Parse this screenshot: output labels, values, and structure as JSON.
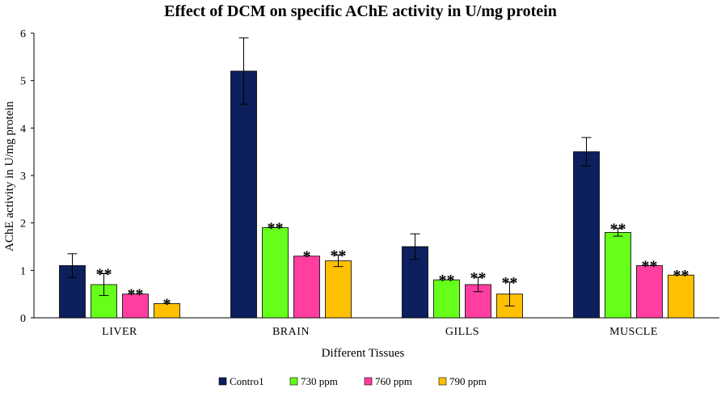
{
  "chart_data": {
    "type": "bar",
    "title": "Effect of DCM on specific AChE activity in U/mg protein",
    "xlabel": "Different Tissues",
    "ylabel": "AChE activity  in U/mg protein",
    "ylim": [
      0,
      6
    ],
    "yticks": [
      "0",
      "1",
      "2",
      "3",
      "4",
      "5",
      "6"
    ],
    "grid": false,
    "legend_position": "bottom",
    "categories": [
      "LIVER",
      "BRAIN",
      "GILLS",
      "MUSCLE"
    ],
    "series": [
      {
        "name": "Contro1",
        "color": "#0d1f5c",
        "values": [
          1.1,
          5.2,
          1.5,
          3.5
        ],
        "errors": [
          0.25,
          0.7,
          0.27,
          0.3
        ],
        "significance": [
          "",
          "",
          "",
          ""
        ]
      },
      {
        "name": "730 ppm",
        "color": "#66ff1a",
        "values": [
          0.7,
          1.9,
          0.8,
          1.8
        ],
        "errors": [
          0.23,
          0,
          0,
          0.08
        ],
        "significance": [
          "**",
          "**",
          "**",
          "**"
        ]
      },
      {
        "name": "760 ppm",
        "color": "#ff3ea0",
        "values": [
          0.5,
          1.3,
          0.7,
          1.1
        ],
        "errors": [
          0,
          0,
          0.15,
          0
        ],
        "significance": [
          "**",
          "*",
          "**",
          "**"
        ]
      },
      {
        "name": "790 ppm",
        "color": "#ffc000",
        "values": [
          0.3,
          1.2,
          0.5,
          0.9
        ],
        "errors": [
          0,
          0.12,
          0.25,
          0
        ],
        "significance": [
          "*",
          "**",
          "**",
          "**"
        ]
      }
    ]
  }
}
